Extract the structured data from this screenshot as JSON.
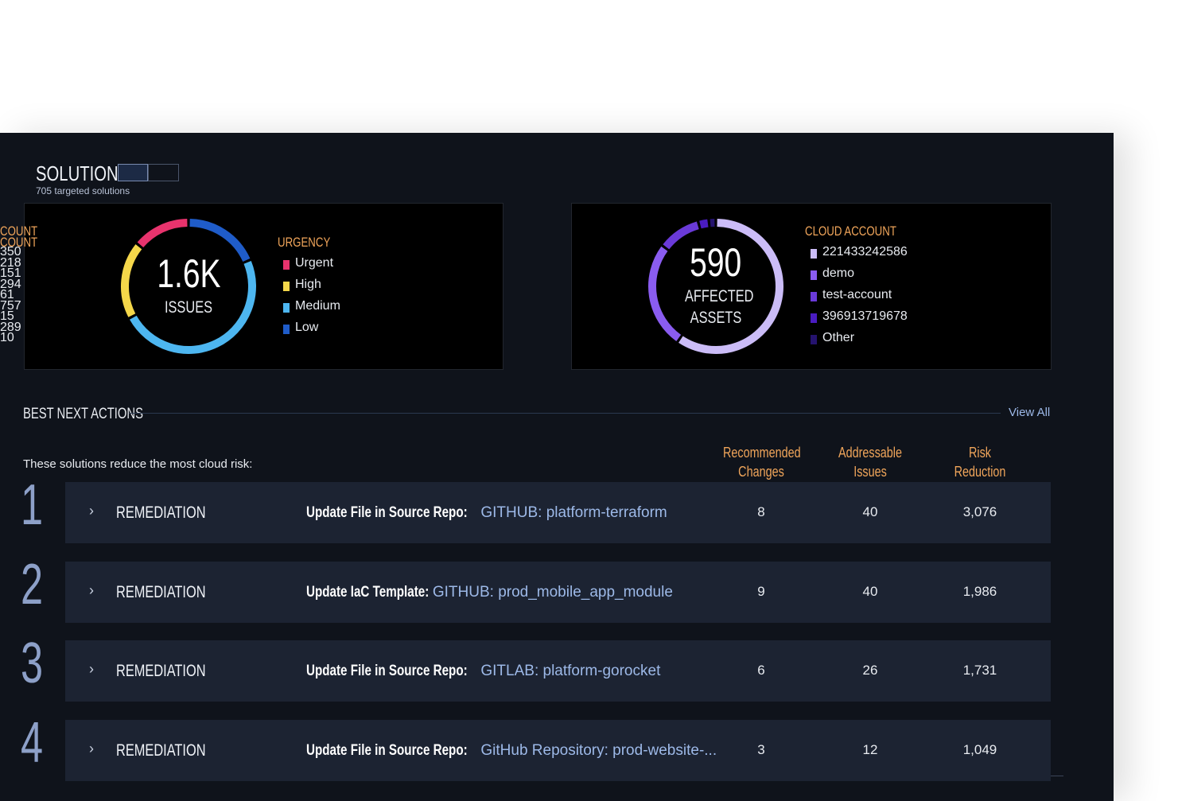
{
  "header": {
    "title": "SOLUTIONS",
    "subtitle": "705 targeted solutions"
  },
  "urgency_panel": {
    "center_value": "1.6K",
    "center_label": "ISSUES",
    "label_header": "URGENCY",
    "count_header": "COUNT",
    "items": [
      {
        "label": "Urgent",
        "count": 218,
        "color": "#e8336d"
      },
      {
        "label": "High",
        "count": 294,
        "color": "#f5d74a"
      },
      {
        "label": "Medium",
        "count": 757,
        "color": "#4db6f0"
      },
      {
        "label": "Low",
        "count": 289,
        "color": "#1f5cc9"
      }
    ]
  },
  "accounts_panel": {
    "center_value": "590",
    "center_label": "AFFECTED ASSETS",
    "label_header": "CLOUD ACCOUNT",
    "count_header": "COUNT",
    "items": [
      {
        "label": "221433242586",
        "count": 350,
        "color": "#cbbcf7"
      },
      {
        "label": "demo",
        "count": 151,
        "color": "#8a5cf0"
      },
      {
        "label": "test-account",
        "count": 61,
        "color": "#6a3ad8"
      },
      {
        "label": "396913719678",
        "count": 15,
        "color": "#4a1cc0"
      },
      {
        "label": "Other",
        "count": 10,
        "color": "#25136e"
      }
    ]
  },
  "best_next_actions": {
    "title": "BEST NEXT ACTIONS",
    "view_all": "View All",
    "intro": "These solutions reduce the most cloud risk:",
    "columns": [
      "Recommended Changes",
      "Addressable Issues",
      "Risk Reduction"
    ],
    "rows": [
      {
        "rank": 1,
        "type": "REMEDIATION",
        "action": "Update File in Source Repo:",
        "target": "GITHUB: platform-terraform",
        "changes": 8,
        "issues": 40,
        "risk_reduction": "3,076"
      },
      {
        "rank": 2,
        "type": "REMEDIATION",
        "action": "Update IaC Template:",
        "target": "GITHUB: prod_mobile_app_module",
        "changes": 9,
        "issues": 40,
        "risk_reduction": "1,986"
      },
      {
        "rank": 3,
        "type": "REMEDIATION",
        "action": "Update File in Source Repo:",
        "target": "GITLAB: platform-gorocket",
        "changes": 6,
        "issues": 26,
        "risk_reduction": "1,731"
      },
      {
        "rank": 4,
        "type": "REMEDIATION",
        "action": "Update File in Source Repo:",
        "target": "GitHub Repository: prod-website-...",
        "changes": 3,
        "issues": 12,
        "risk_reduction": "1,049"
      }
    ]
  }
}
